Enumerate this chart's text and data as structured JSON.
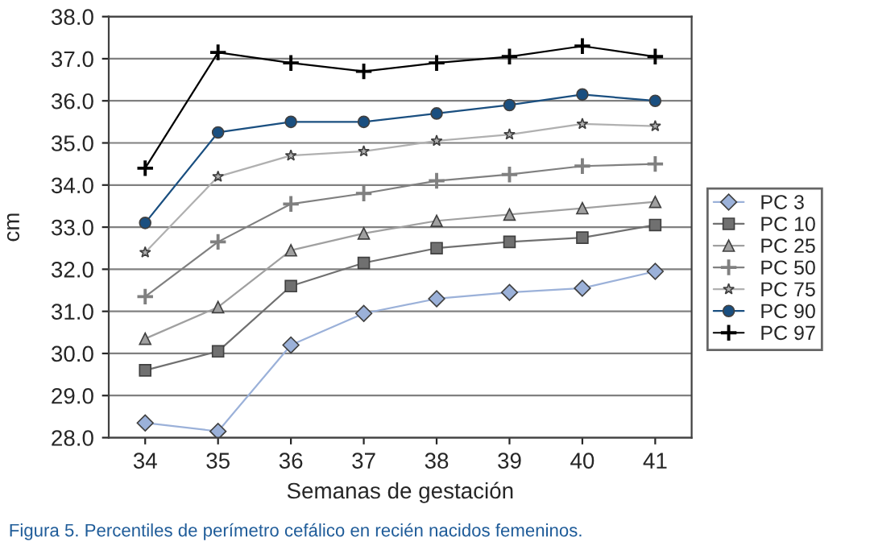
{
  "chart_data": {
    "type": "line",
    "xlabel": "Semanas de gestación",
    "ylabel": "cm",
    "categories": [
      "34",
      "35",
      "36",
      "37",
      "38",
      "39",
      "40",
      "41"
    ],
    "ylim": [
      28,
      38
    ],
    "yticks": [
      {
        "value": 28,
        "label": "28.0"
      },
      {
        "value": 29,
        "label": "29.0"
      },
      {
        "value": 30,
        "label": "30.0"
      },
      {
        "value": 31,
        "label": "31.0"
      },
      {
        "value": 32,
        "label": "32.0"
      },
      {
        "value": 33,
        "label": "33.0"
      },
      {
        "value": 34,
        "label": "34.0"
      },
      {
        "value": 35,
        "label": "35.0"
      },
      {
        "value": 36,
        "label": "36.0"
      },
      {
        "value": 37,
        "label": "37.0"
      },
      {
        "value": 38,
        "label": "38.0"
      }
    ],
    "grid": "y",
    "legend": "right",
    "line_style": "solid",
    "series": [
      {
        "name": "PC 3",
        "color": "#9bb1d9",
        "marker": "diamond",
        "values": [
          28.35,
          28.15,
          30.2,
          30.95,
          31.3,
          31.45,
          31.55,
          31.95
        ]
      },
      {
        "name": "PC 10",
        "color": "#707070",
        "marker": "square",
        "values": [
          29.6,
          30.05,
          31.6,
          32.15,
          32.5,
          32.65,
          32.75,
          33.05
        ]
      },
      {
        "name": "PC 25",
        "color": "#a0a0a0",
        "marker": "triangle",
        "values": [
          30.35,
          31.1,
          32.45,
          32.85,
          33.15,
          33.3,
          33.45,
          33.6
        ]
      },
      {
        "name": "PC 50",
        "color": "#808080",
        "marker": "cross",
        "values": [
          31.35,
          32.65,
          33.55,
          33.8,
          34.1,
          34.25,
          34.45,
          34.5
        ]
      },
      {
        "name": "PC 75",
        "color": "#b0b0b0",
        "marker": "star",
        "values": [
          32.4,
          34.2,
          34.7,
          34.8,
          35.05,
          35.2,
          35.45,
          35.4
        ]
      },
      {
        "name": "PC 90",
        "color": "#1a4f80",
        "marker": "circle",
        "values": [
          33.1,
          35.25,
          35.5,
          35.5,
          35.7,
          35.9,
          36.15,
          36.0
        ]
      },
      {
        "name": "PC 97",
        "color": "#000000",
        "marker": "cross",
        "values": [
          34.4,
          37.15,
          36.9,
          36.7,
          36.9,
          37.05,
          37.3,
          37.05
        ]
      }
    ],
    "annotations": [
      "Figura 5. Percentiles de perímetro cefálico en recién nacidos femeninos."
    ]
  }
}
